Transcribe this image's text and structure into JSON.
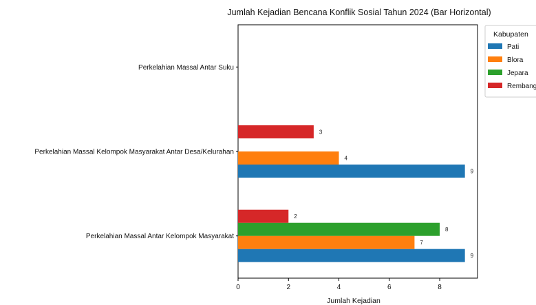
{
  "chart_data": {
    "type": "bar",
    "orientation": "horizontal",
    "title": "Jumlah Kejadian Bencana Konflik Sosial Tahun 2024 (Bar Horizontal)",
    "xlabel": "Jumlah Kejadian",
    "ylabel": "",
    "xlim": [
      0,
      9.5
    ],
    "xticks": [
      0,
      2,
      4,
      6,
      8
    ],
    "grid": false,
    "legend_title": "Kabupaten",
    "legend_position": "top-right outside",
    "categories": [
      "Perkelahian Massal Antar Kelompok Masyarakat",
      "Perkelahian Massal Kelompok Masyarakat Antar Desa/Kelurahan",
      "Perkelahian Massal Antar Suku"
    ],
    "series": [
      {
        "name": "Pati",
        "color": "#1f77b4",
        "values": [
          9,
          9,
          null
        ]
      },
      {
        "name": "Blora",
        "color": "#ff7f0e",
        "values": [
          7,
          4,
          null
        ]
      },
      {
        "name": "Jepara",
        "color": "#2ca02c",
        "values": [
          8,
          null,
          null
        ]
      },
      {
        "name": "Rembang",
        "color": "#d62728",
        "values": [
          2,
          3,
          null
        ]
      }
    ]
  }
}
